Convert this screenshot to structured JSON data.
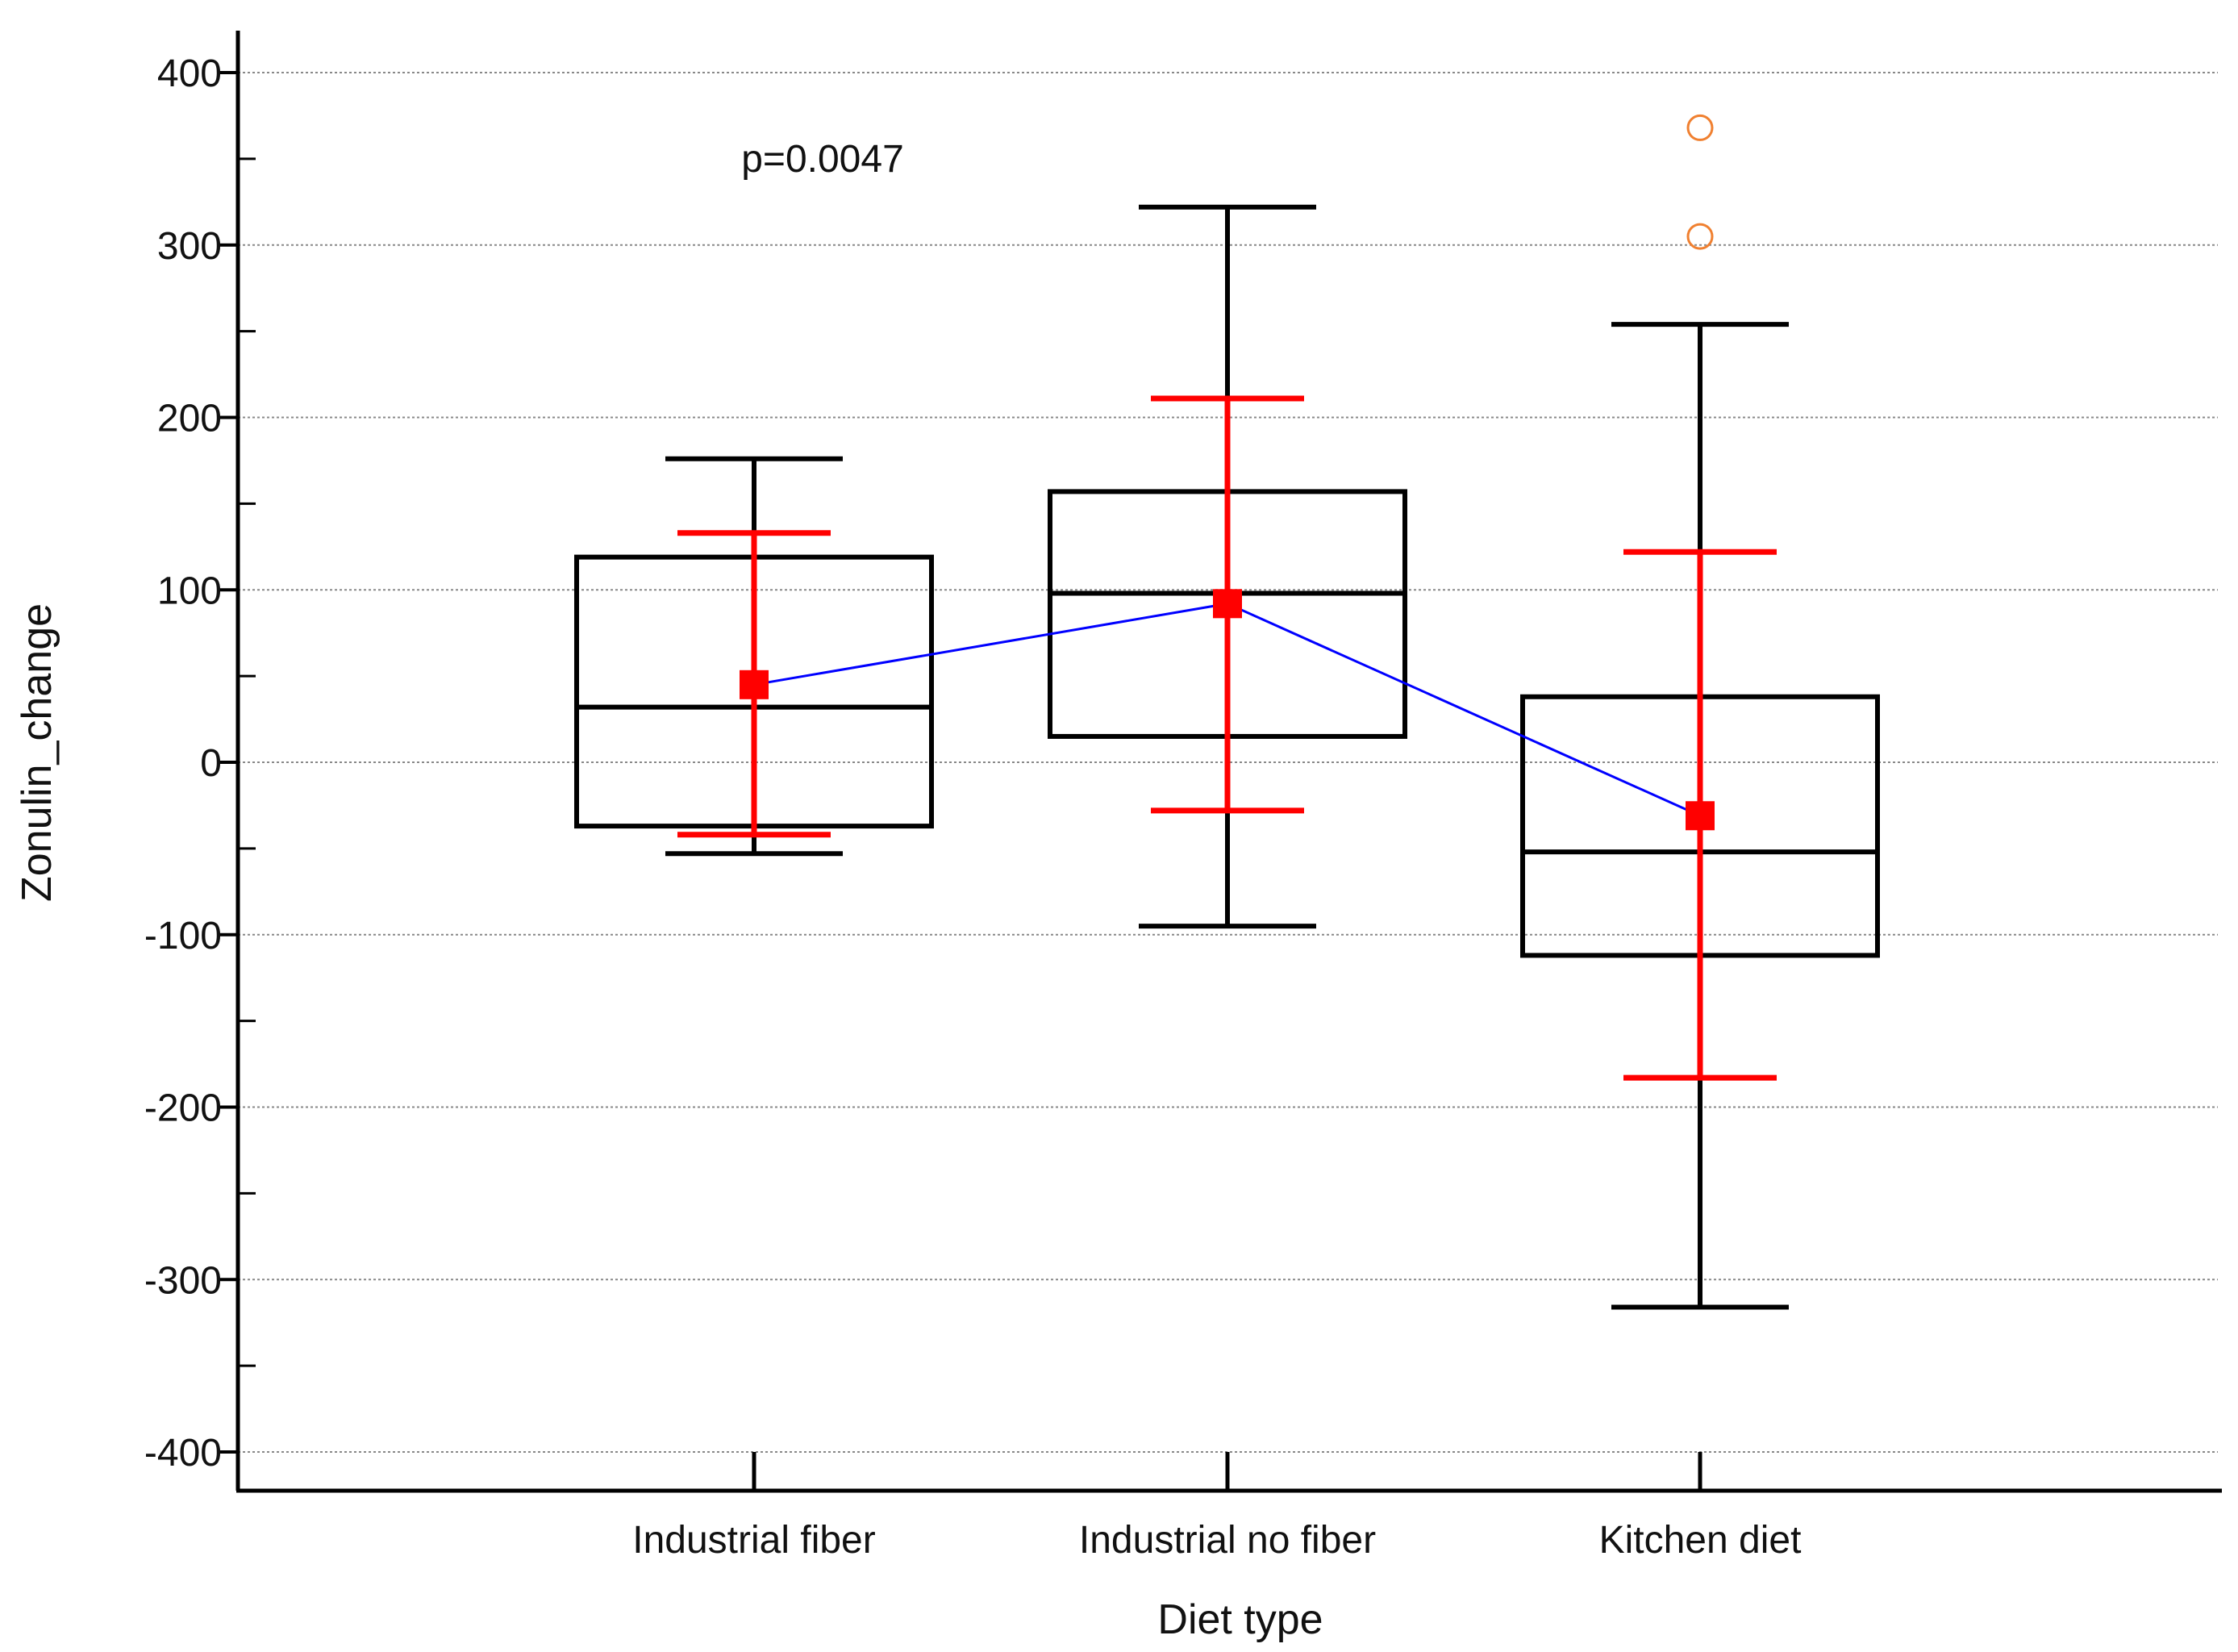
{
  "chart_data": {
    "type": "box",
    "xlabel": "Diet type",
    "ylabel": "Zonulin_change",
    "ylim": [
      -400,
      400
    ],
    "y_ticks": [
      400,
      300,
      200,
      100,
      0,
      -100,
      -200,
      -300,
      -400
    ],
    "y_tick_labels": [
      "400",
      "300",
      "200",
      "100",
      "0",
      "-100",
      "-200",
      "-300",
      "-400"
    ],
    "grid": true,
    "annotation": "p=0.0047",
    "categories": [
      "Industrial fiber",
      "Industrial no fiber",
      "Kitchen diet"
    ],
    "boxes": [
      {
        "whisker_low": -53,
        "q1": -37,
        "median": 32,
        "q3": 119,
        "whisker_high": 176,
        "outliers": []
      },
      {
        "whisker_low": -95,
        "q1": 15,
        "median": 98,
        "q3": 157,
        "whisker_high": 322,
        "outliers": []
      },
      {
        "whisker_low": -316,
        "q1": -112,
        "median": -52,
        "q3": 38,
        "whisker_high": 254,
        "outliers": [
          305,
          368
        ]
      }
    ],
    "mean_series": {
      "means": [
        45,
        92,
        -31
      ],
      "ci_low": [
        -42,
        -28,
        -183
      ],
      "ci_high": [
        133,
        211,
        122
      ]
    },
    "colors": {
      "box": "#000000",
      "mean": "#ff0000",
      "mean_line": "#0000ff",
      "outlier": "#f08030",
      "grid": "#888888"
    }
  }
}
